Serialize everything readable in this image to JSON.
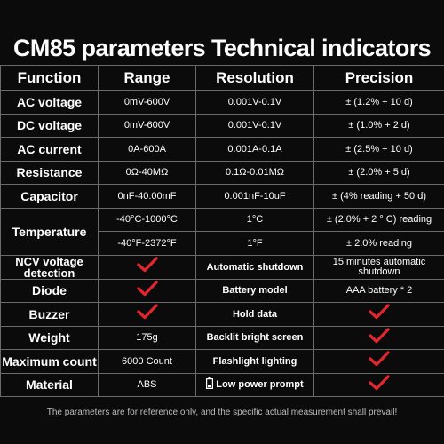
{
  "title": "CM85 parameters Technical indicators",
  "headers": [
    "Function",
    "Range",
    "Resolution",
    "Precision"
  ],
  "rows": {
    "ac_voltage": {
      "function": "AC voltage",
      "range": "0mV-600V",
      "resolution": "0.001V-0.1V",
      "precision": "± (1.2% + 10 d)"
    },
    "dc_voltage": {
      "function": "DC voltage",
      "range": "0mV-600V",
      "resolution": "0.001V-0.1V",
      "precision": "± (1.0% + 2 d)"
    },
    "ac_current": {
      "function": "AC current",
      "range": "0A-600A",
      "resolution": "0.001A-0.1A",
      "precision": "± (2.5% + 10 d)"
    },
    "resistance": {
      "function": "Resistance",
      "range": "0Ω-40MΩ",
      "resolution": "0.1Ω-0.01MΩ",
      "precision": "± (2.0% + 5 d)"
    },
    "capacitor": {
      "function": "Capacitor",
      "range": "0nF-40.00mF",
      "resolution": "0.001nF-10uF",
      "precision": "± (4% reading + 50 d)"
    },
    "temperature": {
      "function": "Temperature",
      "c": {
        "range": "-40°C-1000°C",
        "resolution": "1°C",
        "precision": "± (2.0% + 2 ° C) reading"
      },
      "f": {
        "range": "-40°F-2372°F",
        "resolution": "1°F",
        "precision": "± 2.0% reading"
      }
    },
    "ncv": {
      "function": "NCV voltage detection",
      "feature": "Automatic shutdown",
      "feature_value": "15 minutes automatic shutdown"
    },
    "diode": {
      "function": "Diode",
      "feature": "Battery model",
      "feature_value": "AAA battery * 2"
    },
    "buzzer": {
      "function": "Buzzer",
      "feature": "Hold data"
    },
    "weight": {
      "function": "Weight",
      "value": "175g",
      "feature": "Backlit bright screen"
    },
    "max_count": {
      "function": "Maximum count",
      "value": "6000 Count",
      "feature": "Flashlight lighting"
    },
    "material": {
      "function": "Material",
      "value": "ABS",
      "feature": "Low power prompt"
    }
  },
  "check_icon_color": "#e0262e",
  "footer": "The parameters are for reference only, and the specific actual measurement shall prevail!"
}
